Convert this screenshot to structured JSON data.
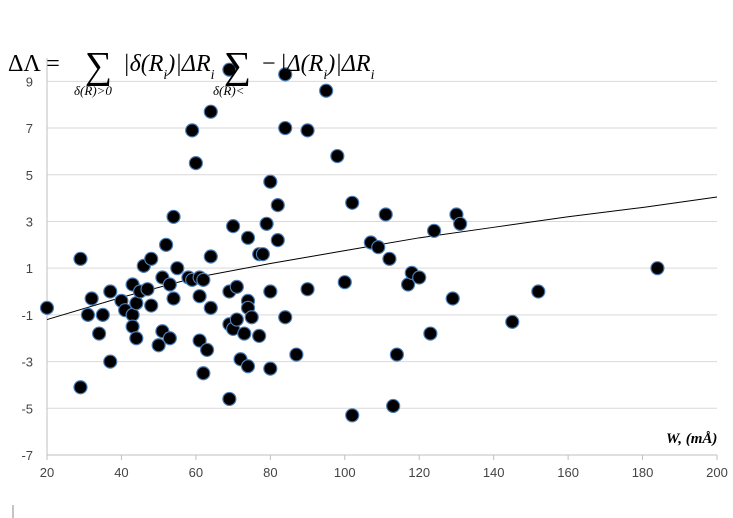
{
  "chart_data": {
    "type": "scatter",
    "title": "",
    "formula": {
      "lhs": "ΔΛ = ",
      "sum1_term": "|δ(R",
      "sum1_index": "i",
      "sum1_tail": ")|ΔR",
      "sum1_tail_index": "i",
      "sum1_condition": "δ(R)>0",
      "minus": " − ",
      "sum2_term": "|Δ(R",
      "sum2_index": "i",
      "sum2_tail": ")|ΔR",
      "sum2_tail_index": "i",
      "sum2_condition": "δ(R)<"
    },
    "xlabel": "W, (mÅ)",
    "ylabel": "",
    "xlim": [
      20,
      200
    ],
    "ylim": [
      -7,
      10
    ],
    "x_ticks": [
      20,
      40,
      60,
      80,
      100,
      120,
      140,
      160,
      180,
      200
    ],
    "y_ticks": [
      -7,
      -5,
      -3,
      -1,
      1,
      3,
      5,
      7,
      9
    ],
    "grid": "horizontal",
    "marker_color": "#000000",
    "marker_edge": "#4a7db8",
    "trendline": {
      "type": "power",
      "points": [
        [
          20,
          -1.2
        ],
        [
          40,
          -0.25
        ],
        [
          60,
          0.6
        ],
        [
          80,
          1.2
        ],
        [
          100,
          1.75
        ],
        [
          120,
          2.3
        ],
        [
          140,
          2.75
        ],
        [
          160,
          3.2
        ],
        [
          180,
          3.6
        ],
        [
          200,
          4.05
        ]
      ]
    },
    "points": [
      [
        20,
        -0.7
      ],
      [
        29,
        1.4
      ],
      [
        29,
        -4.1
      ],
      [
        31,
        -1.0
      ],
      [
        32,
        -0.3
      ],
      [
        34,
        -1.8
      ],
      [
        35,
        -1.0
      ],
      [
        37,
        0.0
      ],
      [
        37,
        -3.0
      ],
      [
        40,
        -0.4
      ],
      [
        41,
        -0.8
      ],
      [
        43,
        0.3
      ],
      [
        43,
        -1.0
      ],
      [
        43,
        -1.5
      ],
      [
        44,
        -0.5
      ],
      [
        44,
        -2.0
      ],
      [
        45,
        0.0
      ],
      [
        46,
        1.1
      ],
      [
        47,
        0.1
      ],
      [
        48,
        1.4
      ],
      [
        48,
        -0.6
      ],
      [
        50,
        -2.3
      ],
      [
        51,
        0.6
      ],
      [
        51,
        -1.7
      ],
      [
        52,
        2.0
      ],
      [
        53,
        0.3
      ],
      [
        53,
        -2.0
      ],
      [
        54,
        -0.3
      ],
      [
        54,
        3.2
      ],
      [
        55,
        1.0
      ],
      [
        58,
        0.6
      ],
      [
        59,
        6.9
      ],
      [
        59,
        0.5
      ],
      [
        60,
        5.5
      ],
      [
        61,
        0.6
      ],
      [
        61,
        -0.2
      ],
      [
        61,
        -2.1
      ],
      [
        62,
        0.5
      ],
      [
        62,
        -3.5
      ],
      [
        63,
        -2.5
      ],
      [
        64,
        7.7
      ],
      [
        64,
        1.5
      ],
      [
        64,
        -0.7
      ],
      [
        69,
        9.5
      ],
      [
        69,
        0.0
      ],
      [
        69,
        -1.4
      ],
      [
        69,
        -4.6
      ],
      [
        70,
        2.8
      ],
      [
        70,
        -1.6
      ],
      [
        71,
        0.2
      ],
      [
        71,
        -1.2
      ],
      [
        72,
        -2.9
      ],
      [
        73,
        -1.8
      ],
      [
        74,
        2.3
      ],
      [
        74,
        -0.4
      ],
      [
        74,
        -0.7
      ],
      [
        74,
        -3.2
      ],
      [
        75,
        -1.1
      ],
      [
        77,
        -1.9
      ],
      [
        77,
        1.6
      ],
      [
        78,
        1.6
      ],
      [
        79,
        2.9
      ],
      [
        80,
        4.7
      ],
      [
        80,
        0.0
      ],
      [
        80,
        -3.3
      ],
      [
        82,
        2.2
      ],
      [
        82,
        3.7
      ],
      [
        84,
        9.3
      ],
      [
        84,
        7.0
      ],
      [
        84,
        -1.1
      ],
      [
        87,
        -2.7
      ],
      [
        90,
        6.9
      ],
      [
        90,
        0.1
      ],
      [
        95,
        8.6
      ],
      [
        98,
        5.8
      ],
      [
        100,
        0.4
      ],
      [
        102,
        3.8
      ],
      [
        102,
        -5.3
      ],
      [
        107,
        2.1
      ],
      [
        109,
        1.9
      ],
      [
        111,
        3.3
      ],
      [
        112,
        1.4
      ],
      [
        113,
        -4.9
      ],
      [
        114,
        -2.7
      ],
      [
        117,
        0.3
      ],
      [
        118,
        0.8
      ],
      [
        120,
        0.6
      ],
      [
        123,
        -1.8
      ],
      [
        124,
        2.6
      ],
      [
        129,
        -0.3
      ],
      [
        130,
        3.3
      ],
      [
        131,
        2.9
      ],
      [
        145,
        -1.3
      ],
      [
        152,
        0.0
      ],
      [
        184,
        1.0
      ]
    ]
  }
}
